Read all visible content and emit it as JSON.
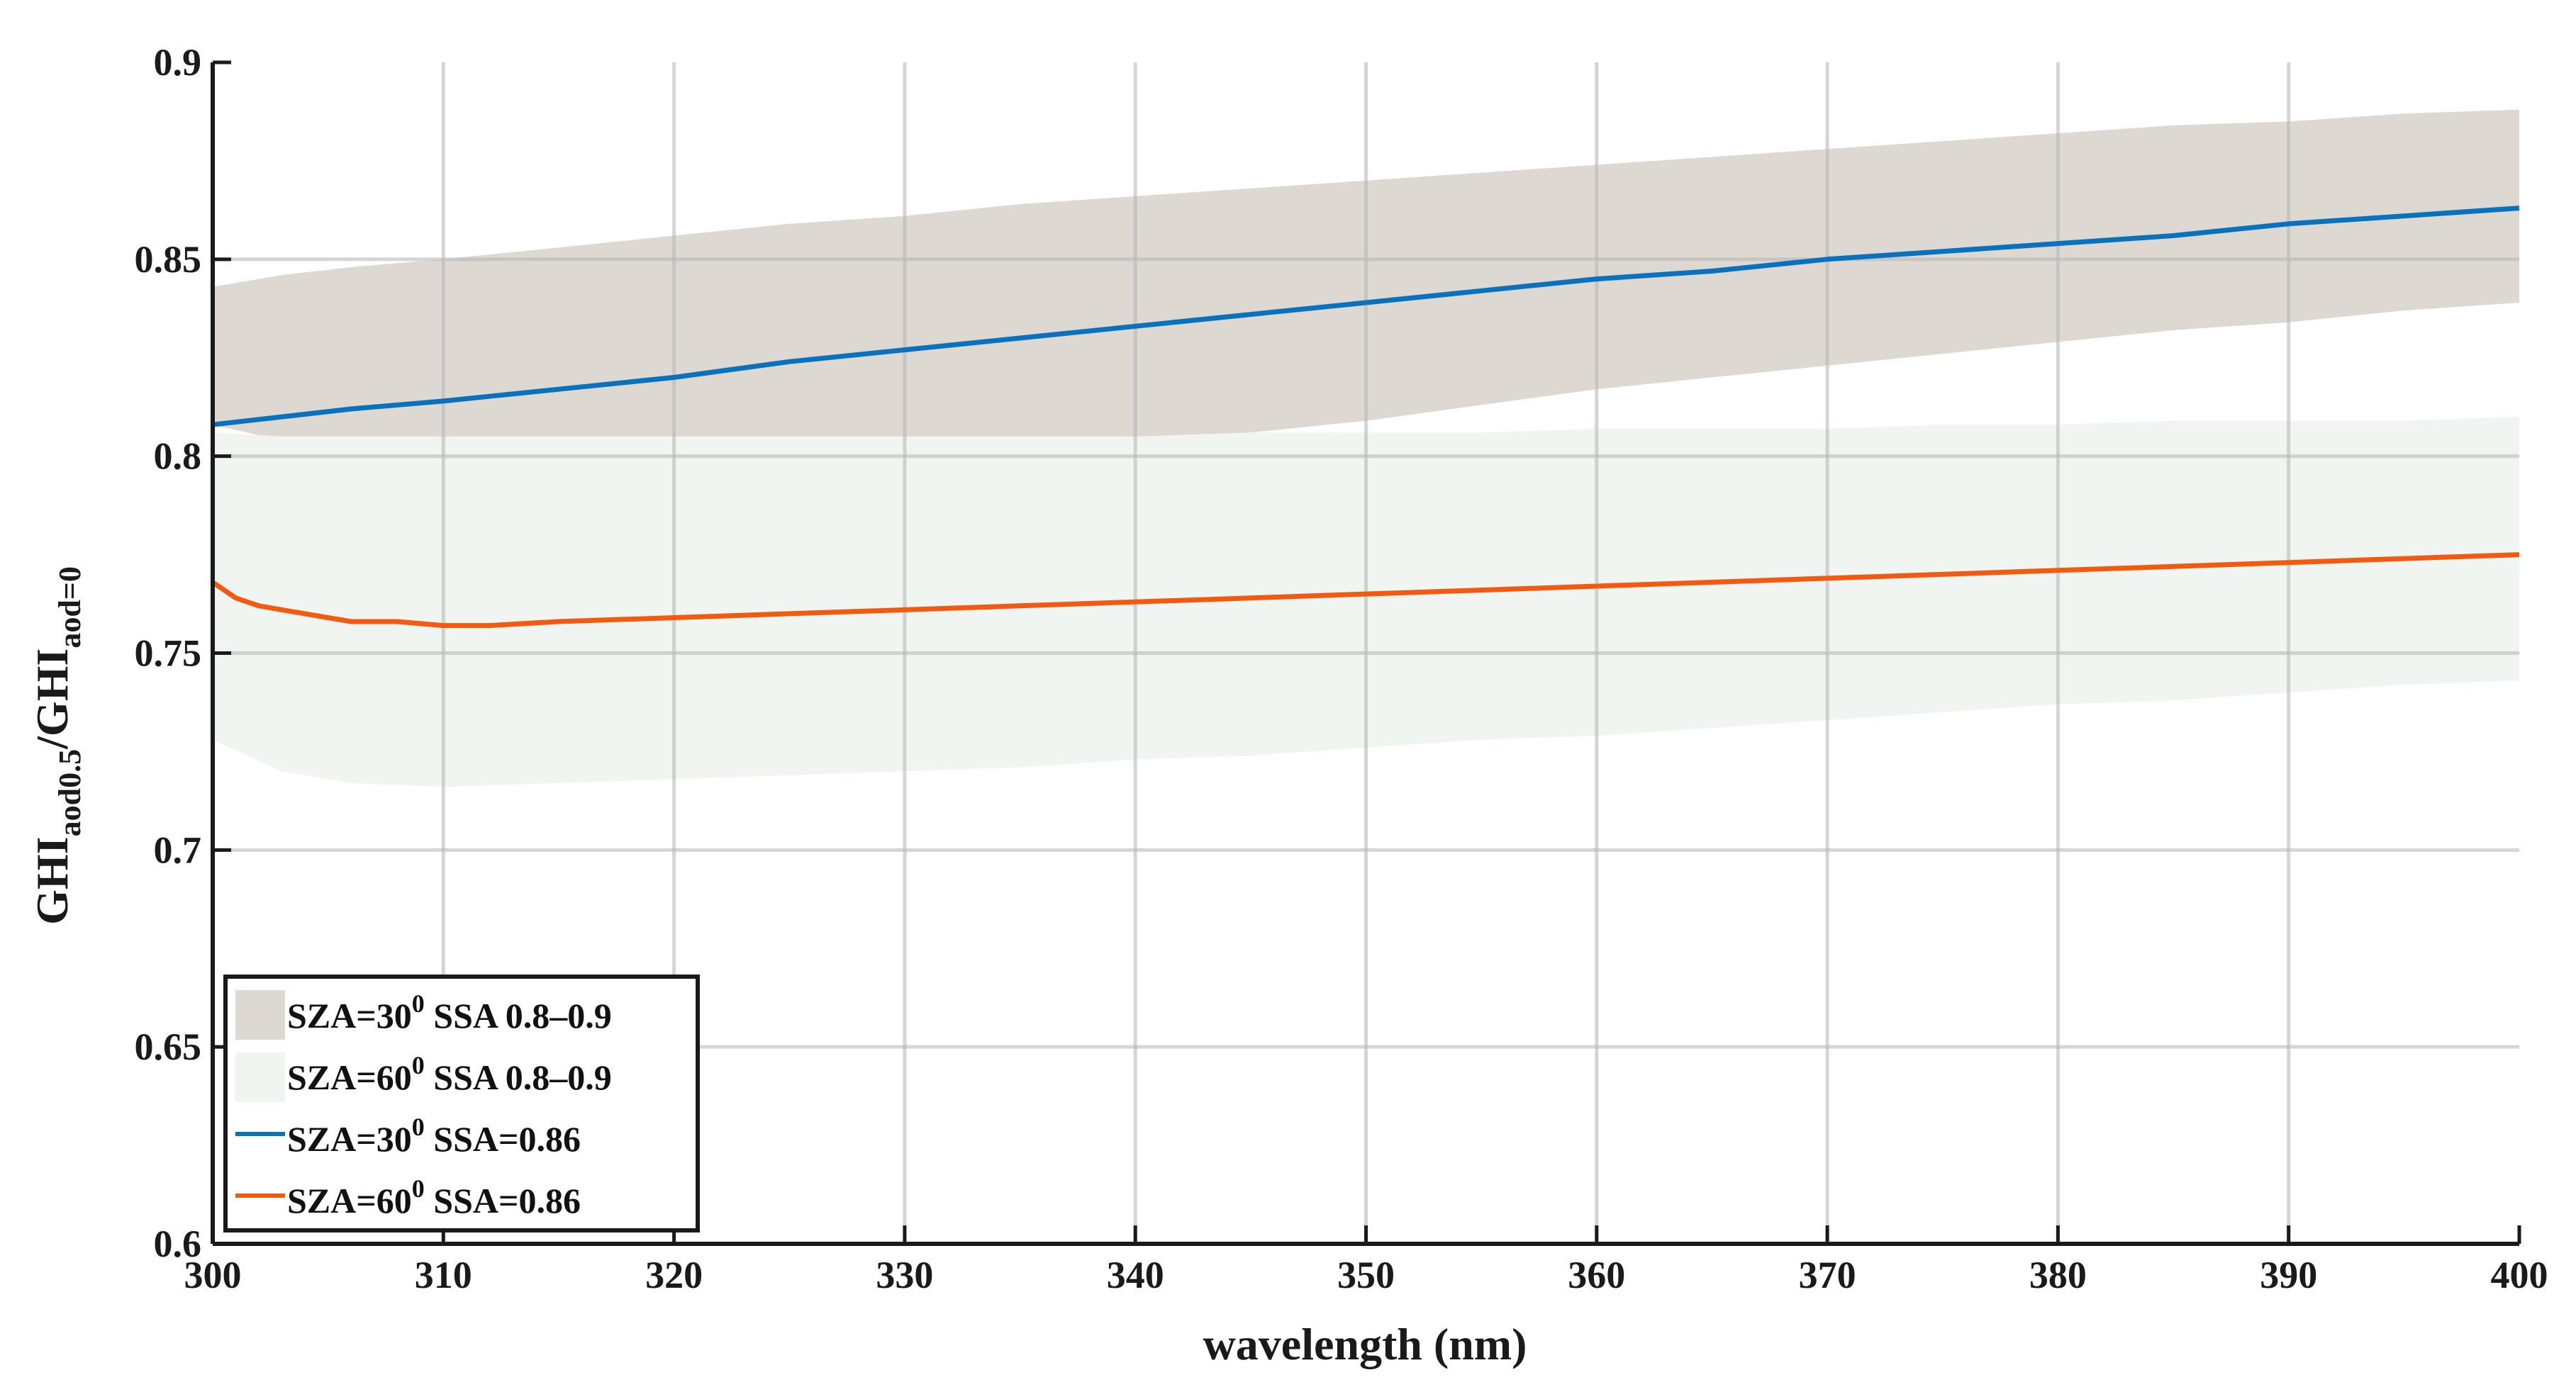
{
  "chart_data": {
    "type": "line",
    "xlabel": "wavelength (nm)",
    "ylabel": {
      "main1": "GHI",
      "sub1": "aod0.5",
      "sep": "/GHI",
      "sub2": "aod=0"
    },
    "xlim": [
      300,
      400
    ],
    "ylim": [
      0.6,
      0.9
    ],
    "xticks": [
      300,
      310,
      320,
      330,
      340,
      350,
      360,
      370,
      380,
      390,
      400
    ],
    "yticks": [
      0.6,
      0.65,
      0.7,
      0.75,
      0.8,
      0.85,
      0.9
    ],
    "xtick_labels": [
      "300",
      "310",
      "320",
      "330",
      "340",
      "350",
      "360",
      "370",
      "380",
      "390",
      "400"
    ],
    "ytick_labels": [
      "0.6",
      "0.65",
      "0.7",
      "0.75",
      "0.8",
      "0.85",
      "0.9"
    ],
    "grid": true,
    "legend_position": "bottom-left",
    "bands": [
      {
        "name": "SZA=30⁰ SSA 0.8–0.9",
        "color": "#ddd8d1",
        "x": [
          300,
          303,
          306,
          310,
          315,
          320,
          325,
          330,
          335,
          340,
          345,
          350,
          355,
          360,
          365,
          370,
          375,
          380,
          385,
          390,
          395,
          400
        ],
        "lower": [
          0.808,
          0.804,
          0.803,
          0.803,
          0.803,
          0.804,
          0.804,
          0.804,
          0.804,
          0.804,
          0.806,
          0.809,
          0.813,
          0.817,
          0.82,
          0.823,
          0.826,
          0.829,
          0.832,
          0.834,
          0.837,
          0.839
        ],
        "upper": [
          0.843,
          0.846,
          0.848,
          0.85,
          0.853,
          0.856,
          0.859,
          0.861,
          0.864,
          0.866,
          0.868,
          0.87,
          0.872,
          0.874,
          0.876,
          0.878,
          0.88,
          0.882,
          0.884,
          0.885,
          0.887,
          0.888
        ]
      },
      {
        "name": "SZA=60⁰ SSA 0.8–0.9",
        "color": "#f0f5f1",
        "x": [
          300,
          303,
          306,
          310,
          315,
          320,
          325,
          330,
          335,
          340,
          345,
          350,
          355,
          360,
          365,
          370,
          375,
          380,
          385,
          390,
          395,
          400
        ],
        "lower": [
          0.728,
          0.72,
          0.717,
          0.716,
          0.717,
          0.718,
          0.719,
          0.72,
          0.721,
          0.723,
          0.724,
          0.726,
          0.728,
          0.729,
          0.731,
          0.733,
          0.735,
          0.737,
          0.738,
          0.74,
          0.742,
          0.743
        ],
        "upper": [
          0.806,
          0.805,
          0.805,
          0.805,
          0.805,
          0.805,
          0.805,
          0.805,
          0.805,
          0.805,
          0.806,
          0.806,
          0.806,
          0.807,
          0.807,
          0.807,
          0.808,
          0.808,
          0.809,
          0.809,
          0.809,
          0.81
        ]
      }
    ],
    "series": [
      {
        "name": "SZA=30⁰ SSA=0.86",
        "color": "#0a72bd",
        "x": [
          300,
          303,
          306,
          310,
          315,
          320,
          325,
          330,
          335,
          340,
          345,
          350,
          355,
          360,
          365,
          370,
          375,
          380,
          385,
          390,
          395,
          400
        ],
        "values": [
          0.808,
          0.81,
          0.812,
          0.814,
          0.817,
          0.82,
          0.824,
          0.827,
          0.83,
          0.833,
          0.836,
          0.839,
          0.842,
          0.845,
          0.847,
          0.85,
          0.852,
          0.854,
          0.856,
          0.859,
          0.861,
          0.863
        ]
      },
      {
        "name": "SZA=60⁰ SSA=0.86",
        "color": "#f25a12",
        "x": [
          300,
          301,
          302,
          303,
          304,
          305,
          306,
          308,
          310,
          312,
          315,
          320,
          325,
          330,
          335,
          340,
          345,
          350,
          355,
          360,
          365,
          370,
          375,
          380,
          385,
          390,
          395,
          400
        ],
        "values": [
          0.768,
          0.764,
          0.762,
          0.761,
          0.76,
          0.759,
          0.758,
          0.758,
          0.757,
          0.757,
          0.758,
          0.759,
          0.76,
          0.761,
          0.762,
          0.763,
          0.764,
          0.765,
          0.766,
          0.767,
          0.768,
          0.769,
          0.77,
          0.771,
          0.772,
          0.773,
          0.774,
          0.775
        ]
      }
    ],
    "legend": [
      {
        "pre": "SZA=30",
        "sup": "0",
        "post": " SSA 0.8–0.9"
      },
      {
        "pre": "SZA=60",
        "sup": "0",
        "post": " SSA 0.8–0.9"
      },
      {
        "pre": "SZA=30",
        "sup": "0",
        "post": " SSA=0.86"
      },
      {
        "pre": "SZA=60",
        "sup": "0",
        "post": " SSA=0.86"
      }
    ]
  }
}
